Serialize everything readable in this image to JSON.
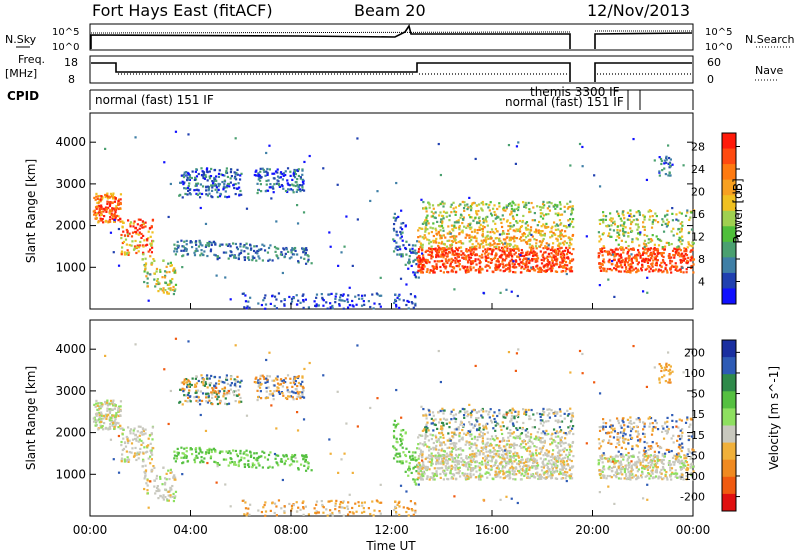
{
  "header": {
    "station": "Fort Hays East (fitACF)",
    "beam": "Beam 20",
    "date": "12/Nov/2013"
  },
  "top_panel": {
    "left_label": "N.Sky",
    "right_label": "N.Search",
    "left_ticks": [
      "10^5",
      "10^0"
    ],
    "right_ticks": [
      "10^5",
      "10^0"
    ]
  },
  "freq_panel": {
    "left_label": "Freq. [MHz]",
    "right_label": "Nave",
    "left_ticks": [
      "18",
      "8"
    ],
    "right_ticks": [
      "60",
      "0"
    ]
  },
  "cpid": {
    "label": "CPID",
    "segments": [
      {
        "text": "normal (fast) 151 IF"
      },
      {
        "text": "themis 3300 IF"
      },
      {
        "text": "normal (fast) 151 IF"
      }
    ]
  },
  "chart_data": [
    {
      "type": "heatmap",
      "title": "Power",
      "xlabel": "",
      "ylabel": "Slant Range [km]",
      "x_ticks": [
        "00:00",
        "04:00",
        "08:00",
        "12:00",
        "16:00",
        "20:00",
        "00:00"
      ],
      "y_ticks": [
        1000,
        2000,
        3000,
        4000
      ],
      "ylim": [
        0,
        4700
      ],
      "colorbar": {
        "label": "Power [dB]",
        "ticks": [
          4,
          8,
          12,
          16,
          20,
          24,
          28
        ],
        "colors": [
          "#1010ff",
          "#2040b0",
          "#3f7fa6",
          "#4aa070",
          "#4fbf3a",
          "#9fd050",
          "#f0c020",
          "#f7a020",
          "#ff7a10",
          "#ff4a10",
          "#ff1a0a"
        ]
      }
    },
    {
      "type": "heatmap",
      "title": "Velocity",
      "xlabel": "Time UT",
      "ylabel": "Slant Range [km]",
      "x_ticks": [
        "00:00",
        "04:00",
        "08:00",
        "12:00",
        "16:00",
        "20:00",
        "00:00"
      ],
      "y_ticks": [
        1000,
        2000,
        3000,
        4000
      ],
      "ylim": [
        0,
        4700
      ],
      "colorbar": {
        "label": "Velocity [m s^-1]",
        "ticks": [
          200,
          100,
          50,
          15,
          -15,
          -50,
          -100,
          -200
        ],
        "colors": [
          "#1a2fa0",
          "#2e5bb5",
          "#2f8a4a",
          "#55c040",
          "#8ee060",
          "#c8c8be",
          "#f0b03a",
          "#f08a20",
          "#f05a10",
          "#e01010"
        ]
      }
    }
  ]
}
